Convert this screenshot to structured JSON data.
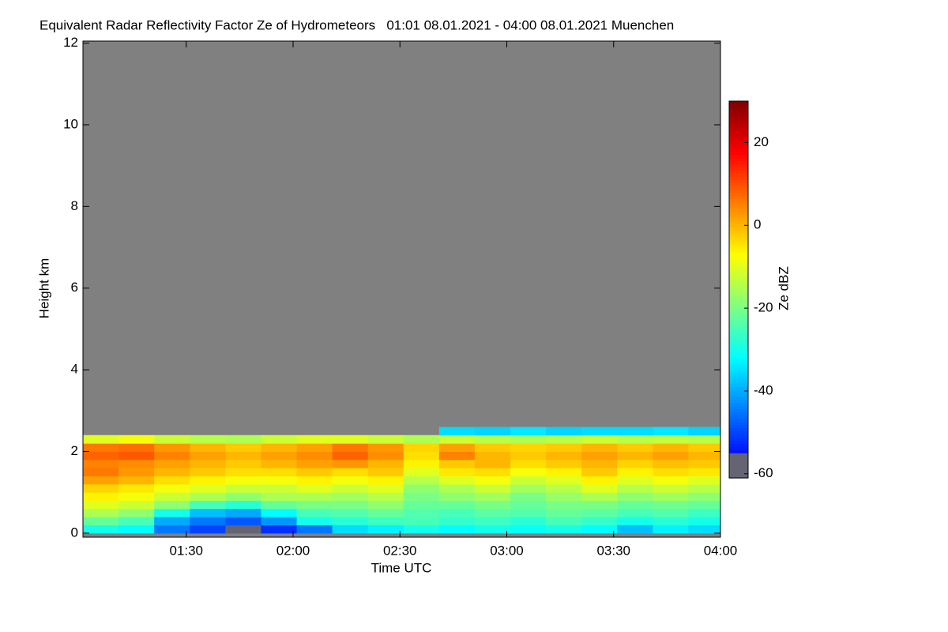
{
  "chart_data": {
    "type": "heatmap",
    "title": "Equivalent Radar Reflectivity Factor Ze of Hydrometeors   01:01 08.01.2021 - 04:00 08.01.2021 Muenchen",
    "x_label": "Time UTC",
    "y_label": "Height km",
    "colorbar_label": "Ze dBZ",
    "colormap": "jet",
    "background": "#808080",
    "xlim": [
      61,
      240
    ],
    "xticks": [
      {
        "value": 90,
        "label": "01:30"
      },
      {
        "value": 120,
        "label": "02:00"
      },
      {
        "value": 150,
        "label": "02:30"
      },
      {
        "value": 180,
        "label": "03:00"
      },
      {
        "value": 210,
        "label": "03:30"
      },
      {
        "value": 240,
        "label": "04:00"
      }
    ],
    "ylim": [
      -0.1,
      12.05
    ],
    "yticks": [
      0,
      2,
      4,
      6,
      8,
      10,
      12
    ],
    "clim": [
      -61,
      30
    ],
    "cticks": [
      -60,
      -40,
      -20,
      0,
      20
    ],
    "x": [
      66,
      76,
      86,
      96,
      106,
      116,
      126,
      136,
      146,
      156,
      166,
      176,
      186,
      196,
      206,
      216,
      226,
      236
    ],
    "y": [
      0.1,
      0.3,
      0.5,
      0.7,
      0.9,
      1.1,
      1.3,
      1.5,
      1.7,
      1.9,
      2.1,
      2.3,
      2.5
    ],
    "z": [
      [
        -30,
        -32,
        -45,
        -50,
        -55,
        -52,
        -45,
        -35,
        -33,
        -30,
        -32,
        -30,
        -31,
        -30,
        -32,
        -38,
        -33,
        -35
      ],
      [
        -22,
        -25,
        -40,
        -45,
        -48,
        -42,
        -30,
        -28,
        -26,
        -25,
        -27,
        -26,
        -28,
        -25,
        -27,
        -30,
        -28,
        -30
      ],
      [
        -15,
        -18,
        -30,
        -38,
        -40,
        -32,
        -25,
        -24,
        -22,
        -24,
        -25,
        -23,
        -24,
        -22,
        -23,
        -25,
        -24,
        -26
      ],
      [
        -10,
        -12,
        -18,
        -25,
        -28,
        -22,
        -20,
        -20,
        -18,
        -22,
        -22,
        -20,
        -22,
        -20,
        -20,
        -22,
        -21,
        -22
      ],
      [
        -6,
        -8,
        -12,
        -15,
        -18,
        -15,
        -15,
        -16,
        -14,
        -20,
        -18,
        -16,
        -20,
        -17,
        -15,
        -18,
        -16,
        -18
      ],
      [
        -3,
        -5,
        -8,
        -10,
        -12,
        -12,
        -10,
        -12,
        -10,
        -18,
        -15,
        -12,
        -16,
        -14,
        -10,
        -14,
        -12,
        -14
      ],
      [
        2,
        0,
        -4,
        -6,
        -8,
        -8,
        -6,
        -8,
        -6,
        -14,
        -10,
        -8,
        -12,
        -10,
        -6,
        -10,
        -8,
        -10
      ],
      [
        6,
        3,
        0,
        -2,
        -4,
        -4,
        -2,
        -4,
        -2,
        -10,
        -5,
        -4,
        -8,
        -6,
        -2,
        -6,
        -4,
        -5
      ],
      [
        5,
        4,
        2,
        0,
        -2,
        0,
        2,
        3,
        0,
        -6,
        -2,
        0,
        -4,
        -2,
        0,
        -3,
        -1,
        -2
      ],
      [
        8,
        9,
        5,
        2,
        0,
        2,
        4,
        8,
        4,
        -4,
        5,
        0,
        -2,
        0,
        2,
        0,
        2,
        0
      ],
      [
        6,
        7,
        3,
        0,
        -2,
        0,
        2,
        6,
        3,
        -3,
        2,
        -2,
        -3,
        -2,
        0,
        -2,
        0,
        -2
      ],
      [
        -10,
        -8,
        -12,
        -14,
        -15,
        -12,
        -10,
        -10,
        -12,
        -15,
        -12,
        -14,
        -15,
        -14,
        -12,
        -14,
        -13,
        -14
      ],
      [
        null,
        null,
        null,
        null,
        null,
        null,
        null,
        null,
        null,
        null,
        -35,
        -36,
        -34,
        -36,
        -35,
        -35,
        -34,
        -36
      ]
    ]
  }
}
